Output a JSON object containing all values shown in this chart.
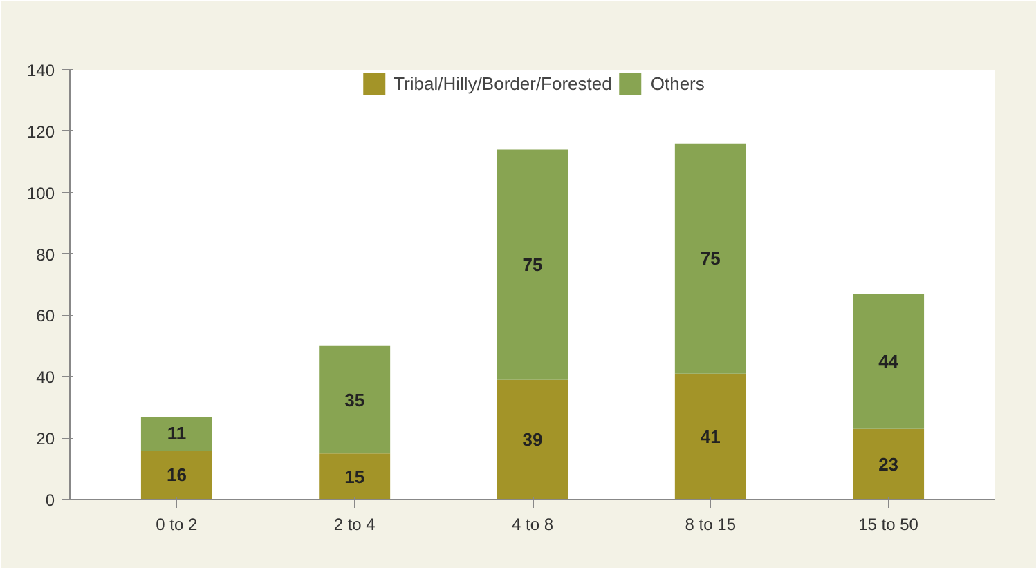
{
  "chart_data": {
    "type": "bar",
    "stacked": true,
    "categories": [
      "0 to 2",
      "2 to 4",
      "4 to 8",
      "8 to 15",
      "15 to 50"
    ],
    "series": [
      {
        "name": "Tribal/Hilly/Border/Forested",
        "color": "#a39428",
        "values": [
          16,
          15,
          39,
          41,
          23
        ]
      },
      {
        "name": "Others",
        "color": "#88a452",
        "values": [
          11,
          35,
          75,
          75,
          44
        ]
      }
    ],
    "ylim": [
      0,
      140
    ],
    "yticks": [
      0,
      20,
      40,
      60,
      80,
      100,
      120,
      140
    ],
    "data_labels": true,
    "grid": false,
    "legend": "top"
  }
}
